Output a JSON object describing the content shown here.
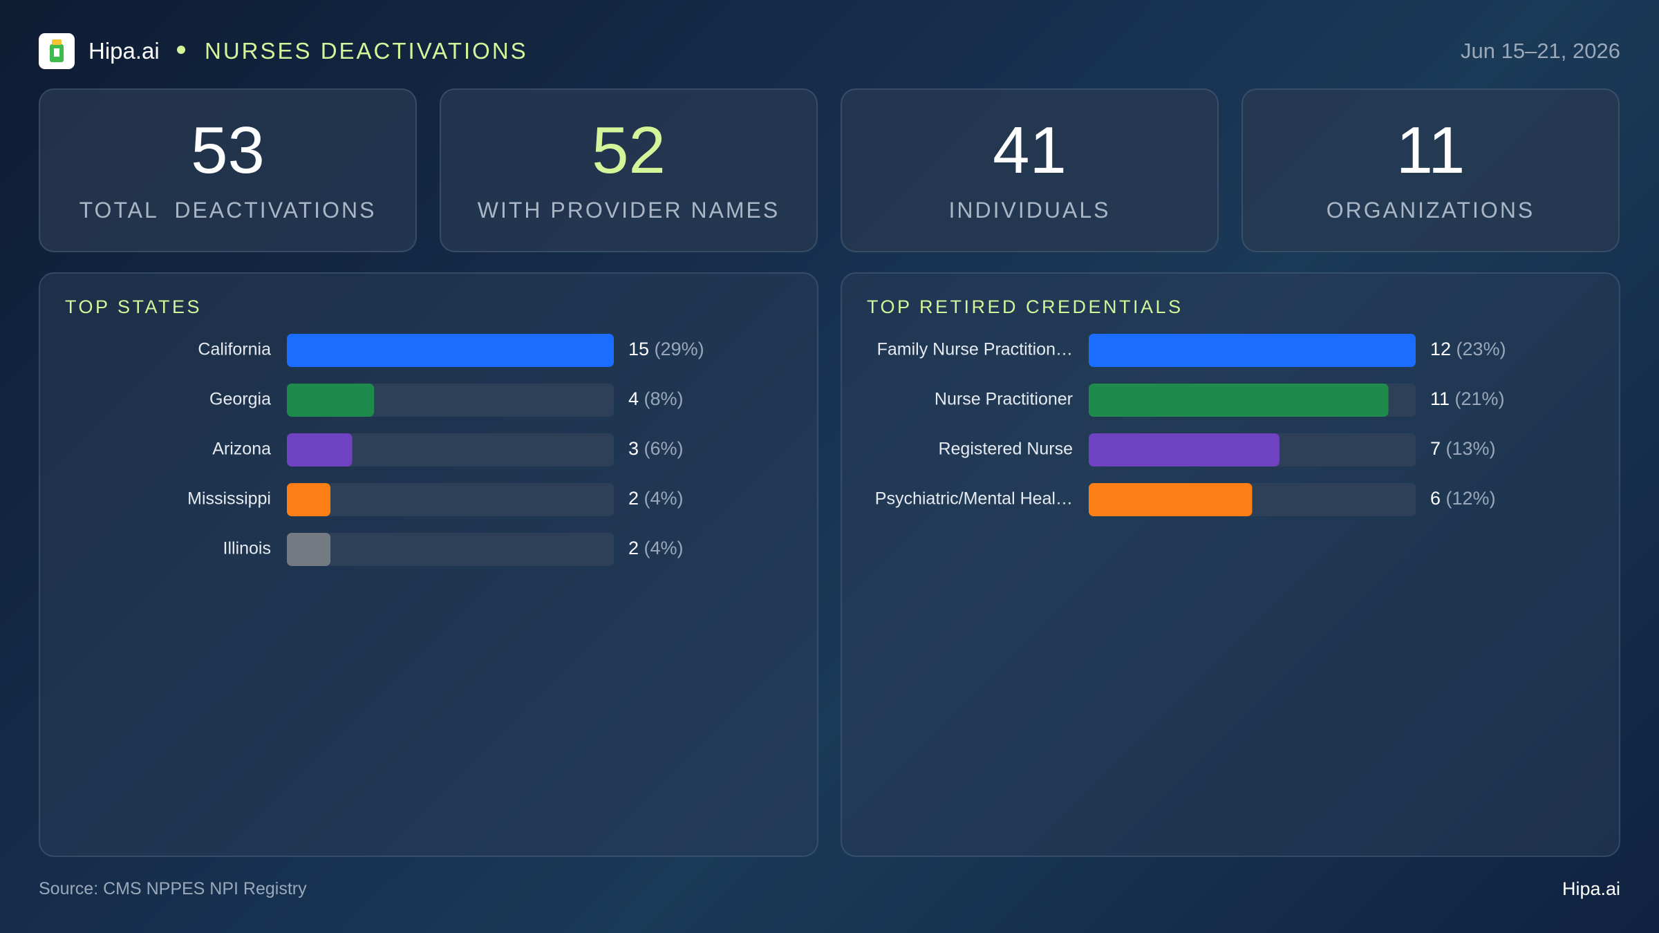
{
  "header": {
    "brand": "Hipa.ai",
    "title": "NURSES DEACTIVATIONS",
    "date": "Jun 15–21, 2026"
  },
  "kpis": [
    {
      "value": 53,
      "label": "TOTAL  DEACTIVATIONS"
    },
    {
      "value": 52,
      "label": "WITH PROVIDER NAMES"
    },
    {
      "value": 41,
      "label": "INDIVIDUALS"
    },
    {
      "value": 11,
      "label": "ORGANIZATIONS"
    }
  ],
  "chart_data": [
    {
      "type": "hbar",
      "title": "TOP STATES",
      "categories": [
        "California",
        "Georgia",
        "Arizona",
        "Mississippi",
        "Illinois"
      ],
      "values": [
        15,
        4,
        3,
        2,
        2
      ],
      "value_labels": [
        "15 (29%)",
        "4 (8%)",
        "3 (6%)",
        "2 (4%)",
        "2 (4%)"
      ],
      "colors": [
        "#1a6dff",
        "#1e8a4c",
        "#6f42c1",
        "#fd7e14",
        "#737a82"
      ],
      "xlim": [
        0,
        15
      ]
    },
    {
      "type": "hbar",
      "title": "TOP RETIRED CREDENTIALS",
      "categories": [
        "Family Nurse Practition…",
        "Nurse Practitioner",
        "Registered Nurse",
        "Psychiatric/Mental  Heal…"
      ],
      "values": [
        12,
        11,
        7,
        6
      ],
      "value_labels": [
        "12 (23%)",
        "11 (21%)",
        "7 (13%)",
        "6 (12%)"
      ],
      "colors": [
        "#1a6dff",
        "#1e8a4c",
        "#6f42c1",
        "#fd7e14"
      ],
      "xlim": [
        0,
        12
      ]
    }
  ],
  "footer": {
    "source": "Source: CMS NPPES NPI Registry",
    "brand": "Hipa.ai"
  }
}
